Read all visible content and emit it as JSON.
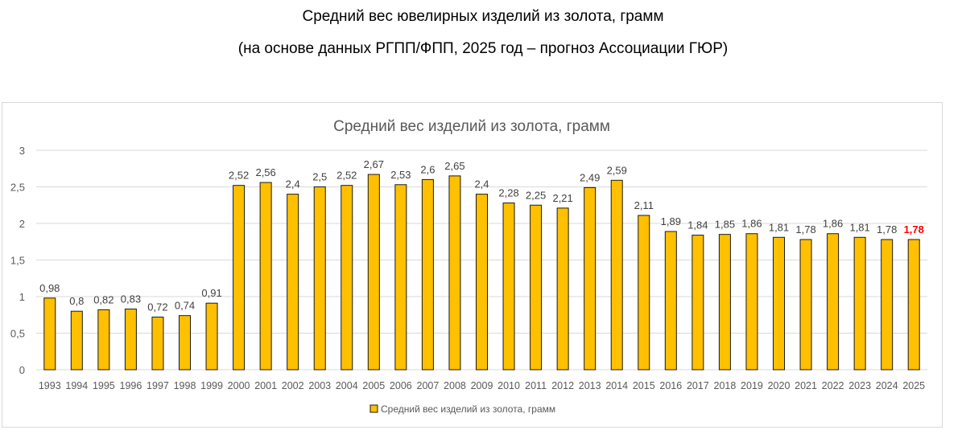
{
  "header": {
    "title": "Средний вес ювелирных изделий из золота, грамм",
    "subtitle": "(на основе данных РГПП/ФПП, 2025 год – прогноз Ассоциации ГЮР)"
  },
  "chart_data": {
    "type": "bar",
    "title": "Средний вес изделий из золота, грамм",
    "xlabel": "",
    "ylabel": "",
    "ylim": [
      0,
      3
    ],
    "yticks": [
      "0",
      "0,5",
      "1",
      "1,5",
      "2",
      "2,5",
      "3"
    ],
    "grid": true,
    "legend": {
      "placement": "bottom",
      "label": "Средний вес изделий из золота, грамм"
    },
    "categories": [
      "1993",
      "1994",
      "1995",
      "1996",
      "1997",
      "1998",
      "1999",
      "2000",
      "2001",
      "2002",
      "2003",
      "2004",
      "2005",
      "2006",
      "2007",
      "2008",
      "2009",
      "2010",
      "2011",
      "2012",
      "2013",
      "2014",
      "2015",
      "2016",
      "2017",
      "2018",
      "2019",
      "2020",
      "2021",
      "2022",
      "2023",
      "2024",
      "2025"
    ],
    "values": [
      0.98,
      0.8,
      0.82,
      0.83,
      0.72,
      0.74,
      0.91,
      2.52,
      2.56,
      2.4,
      2.5,
      2.52,
      2.67,
      2.53,
      2.6,
      2.65,
      2.4,
      2.28,
      2.25,
      2.21,
      2.49,
      2.59,
      2.11,
      1.89,
      1.84,
      1.85,
      1.86,
      1.81,
      1.78,
      1.86,
      1.81,
      1.78,
      1.78
    ],
    "labels": [
      "0,98",
      "0,8",
      "0,82",
      "0,83",
      "0,72",
      "0,74",
      "0,91",
      "2,52",
      "2,56",
      "2,4",
      "2,5",
      "2,52",
      "2,67",
      "2,53",
      "2,6",
      "2,65",
      "2,4",
      "2,28",
      "2,25",
      "2,21",
      "2,49",
      "2,59",
      "2,11",
      "1,89",
      "1,84",
      "1,85",
      "1,86",
      "1,81",
      "1,78",
      "1,86",
      "1,81",
      "1,78",
      "1,78"
    ],
    "highlight_index": 32,
    "colors": {
      "bar": "#ffc000",
      "bar_edge": "#1a1a1a",
      "label": "#404040",
      "highlight_label": "#ff0000",
      "grid": "#d9d9d9"
    }
  }
}
